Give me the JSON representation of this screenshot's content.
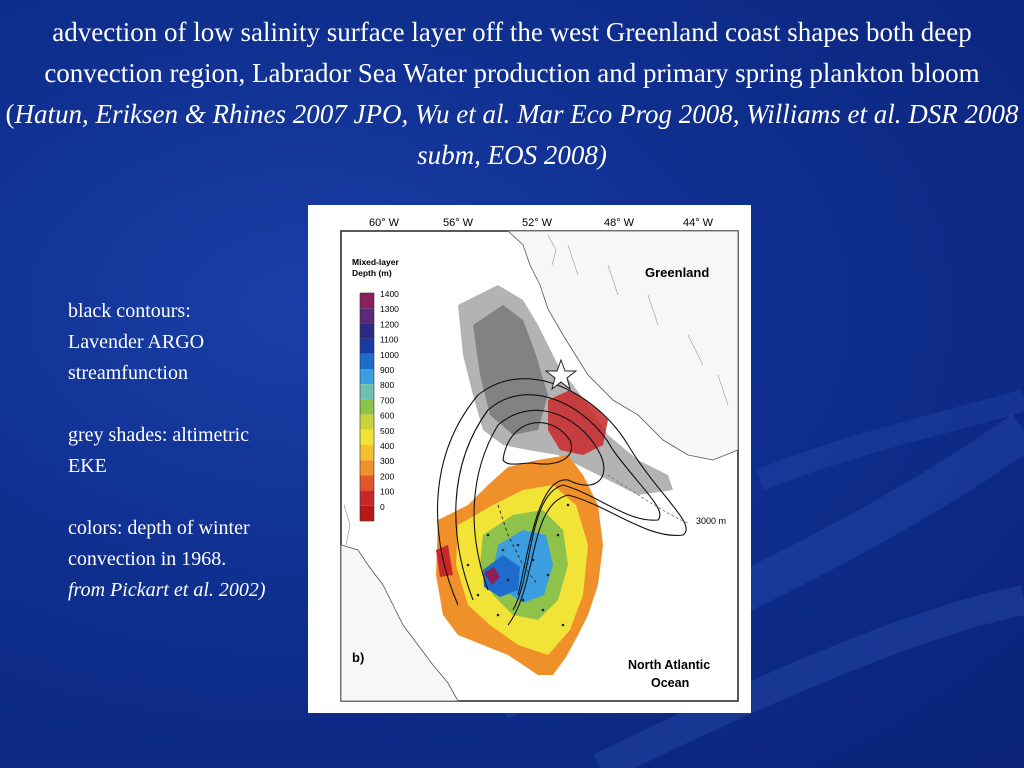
{
  "slide": {
    "title_plain": "advection of low salinity surface layer off the west Greenland coast shapes both deep convection region, Labrador Sea Water production and primary spring plankton bloom (",
    "title_italic": "Hatun, Eriksen & Rhines 2007 JPO, Wu et al. Mar Eco Prog 2008, Williams et al. DSR 2008 subm, EOS 2008)"
  },
  "caption": {
    "line1": "black contours:",
    "line2": "Lavender ARGO",
    "line3": "streamfunction",
    "line4": "grey shades: altimetric",
    "line5": "EKE",
    "line6": "colors: depth of winter",
    "line7": "convection  in 1968.",
    "line8": "from Pickart et al. 2002)"
  },
  "figure": {
    "lon_labels": [
      "60° W",
      "56° W",
      "52° W",
      "48° W",
      "44° W"
    ],
    "legend_title_1": "Mixed-layer",
    "legend_title_2": "Depth (m)",
    "legend_levels": [
      "1400",
      "1300",
      "1200",
      "1100",
      "1000",
      "900",
      "800",
      "700",
      "600",
      "500",
      "400",
      "300",
      "200",
      "100",
      "0"
    ],
    "legend_colors": [
      "#8a1f5a",
      "#5a2a78",
      "#2a2a80",
      "#1a3aa0",
      "#1e6ccc",
      "#3b9ee0",
      "#6fc0b0",
      "#8ec24a",
      "#c8d43a",
      "#f2e436",
      "#f5c030",
      "#f0902a",
      "#e0582a",
      "#c8282a",
      "#b81818"
    ],
    "greenland_label": "Greenland",
    "isobath_label": "3000 m",
    "panel_label": "b)",
    "ocean_label_1": "North Atlantic",
    "ocean_label_2": "Ocean"
  }
}
